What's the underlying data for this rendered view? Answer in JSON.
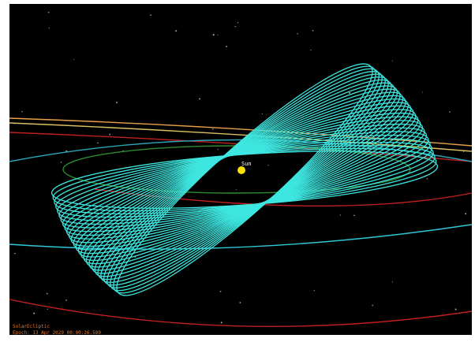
{
  "sun_label": "Sun",
  "coordinate_system": "SolarEcliptic",
  "epoch": "Epoch: 13 Apr 2029 00:00:26.589"
}
